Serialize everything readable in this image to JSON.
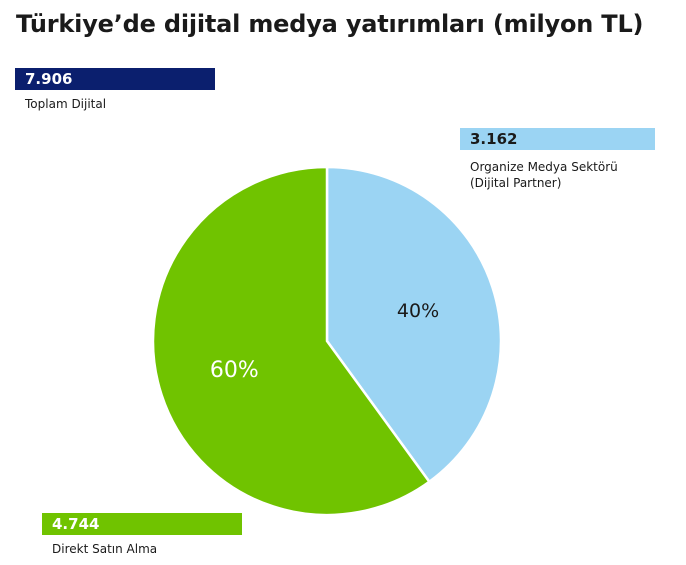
{
  "chart_data": {
    "type": "pie",
    "title": "Türkiye’de dijital medya yatırımları (milyon TL)",
    "total": {
      "value": "7.906",
      "label": "Toplam Dijital"
    },
    "slices": [
      {
        "name_line1": "Organize Medya Sektörü",
        "name_line2": "(Dijital Partner)",
        "value": 3162,
        "value_label": "3.162",
        "percent": 40,
        "percent_label": "40%",
        "color": "#9bd4f3",
        "label_color": "#1a1a1a"
      },
      {
        "name": "Direkt Satın Alma",
        "value": 4744,
        "value_label": "4.744",
        "percent": 60,
        "percent_label": "60%",
        "color": "#70c300",
        "label_color": "#ffffff"
      }
    ]
  }
}
